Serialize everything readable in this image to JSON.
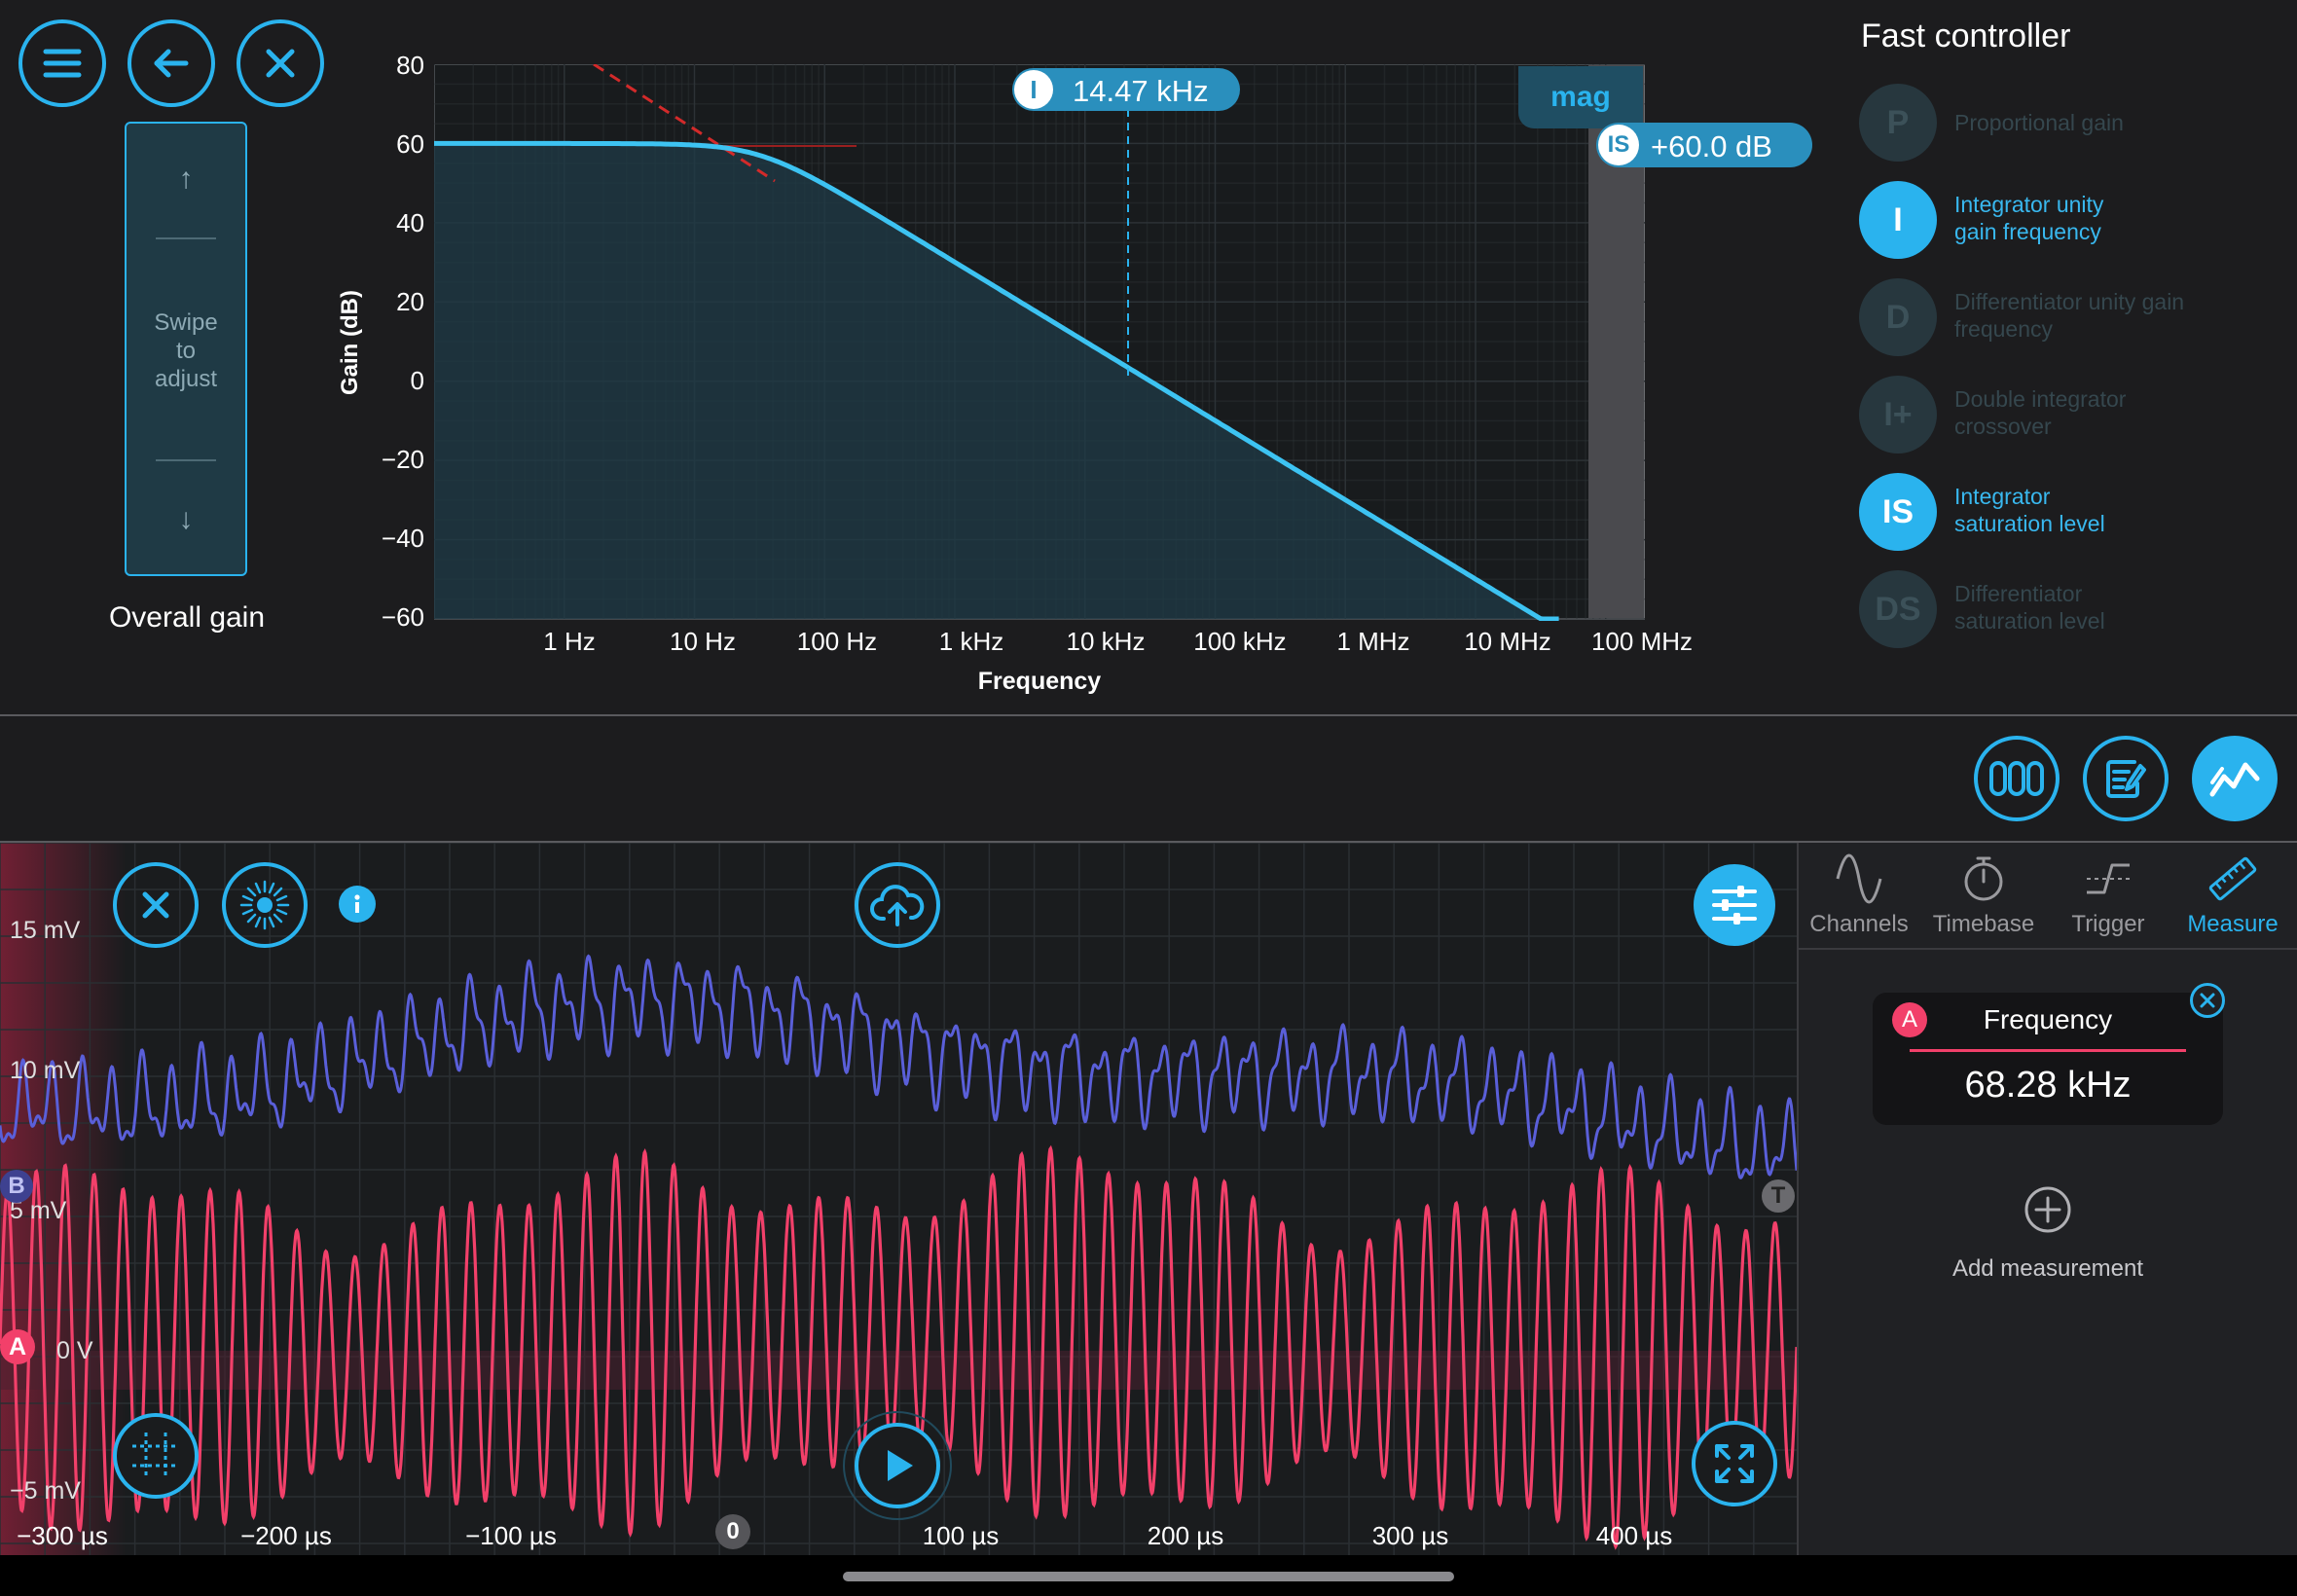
{
  "toolbar": {
    "menu_icon": "hamburger-menu-icon",
    "back_icon": "arrow-left-icon",
    "close_icon": "close-icon"
  },
  "gain_slider": {
    "up_arrow": "↑",
    "down_arrow": "↓",
    "hint_line1": "Swipe",
    "hint_line2": "to",
    "hint_line3": "adjust",
    "label": "Overall gain"
  },
  "bode": {
    "y_axis_label": "Gain (dB)",
    "x_axis_label": "Frequency",
    "y_ticks": [
      "80",
      "60",
      "40",
      "20",
      "0",
      "−20",
      "−40",
      "−60"
    ],
    "x_ticks": [
      "1 Hz",
      "10 Hz",
      "100 Hz",
      "1 kHz",
      "10 kHz",
      "100 kHz",
      "1 MHz",
      "10 MHz",
      "100 MHz"
    ],
    "mag_label": "mag",
    "marker_i_letter": "I",
    "marker_i_value": "14.47 kHz",
    "marker_is_letter": "IS",
    "marker_is_value": "+60.0 dB"
  },
  "chart_data": {
    "type": "line",
    "title": "",
    "xlabel": "Frequency",
    "ylabel": "Gain (dB)",
    "x_scale": "log",
    "xlim": [
      "0.1 Hz",
      "200 MHz"
    ],
    "ylim": [
      -60,
      80
    ],
    "series": [
      {
        "x_hz": [
          0.1,
          1,
          10,
          14.47,
          30,
          100,
          1000,
          14470,
          100000,
          1000000,
          10000000,
          100000000
        ],
        "y_db": [
          60,
          60,
          59.7,
          59.3,
          57.5,
          43.2,
          23.2,
          0,
          -16.8,
          -36.8,
          -56.8,
          -60
        ]
      }
    ],
    "annotations": [
      {
        "label": "I",
        "value": "14.47 kHz"
      },
      {
        "label": "IS",
        "value": "+60.0 dB"
      }
    ],
    "grid": true
  },
  "fast_controller": {
    "title": "Fast controller",
    "items": [
      {
        "letter": "P",
        "label": "Proportional gain",
        "state": "off"
      },
      {
        "letter": "I",
        "label": "Integrator unity gain frequency",
        "state": "on"
      },
      {
        "letter": "D",
        "label": "Differentiator unity gain frequency",
        "state": "off"
      },
      {
        "letter": "I+",
        "label": "Double integrator crossover",
        "state": "off"
      },
      {
        "letter": "IS",
        "label": "Integrator saturation level",
        "state": "on"
      },
      {
        "letter": "DS",
        "label": "Differentiator saturation level",
        "state": "off"
      }
    ]
  },
  "view_buttons": {
    "multi_instrument_icon": "three-panel-icon",
    "notes_icon": "edit-notes-icon",
    "chart_icon": "line-chart-icon"
  },
  "oscilloscope": {
    "y_ticks": [
      "15 mV",
      "10 mV",
      "5 mV",
      "0 V",
      "−5 mV"
    ],
    "x_ticks": [
      "−300 µs",
      "−200 µs",
      "−100 µs",
      "100 µs",
      "200 µs",
      "300 µs",
      "400 µs"
    ],
    "channel_a_label": "A",
    "channel_b_label": "B",
    "trigger_label": "T",
    "zero_marker": "0",
    "colors": {
      "channel_a": "#f2406a",
      "channel_b": "#5a5fd9"
    }
  },
  "side_tabs": [
    {
      "label": "Channels",
      "icon": "sine-wave-icon"
    },
    {
      "label": "Timebase",
      "icon": "stopwatch-icon"
    },
    {
      "label": "Trigger",
      "icon": "trigger-edge-icon"
    },
    {
      "label": "Measure",
      "icon": "ruler-icon"
    }
  ],
  "measurement": {
    "channel": "A",
    "name": "Frequency",
    "value": "68.28 kHz",
    "add_label": "Add measurement"
  },
  "accent": "#2ab3ee"
}
